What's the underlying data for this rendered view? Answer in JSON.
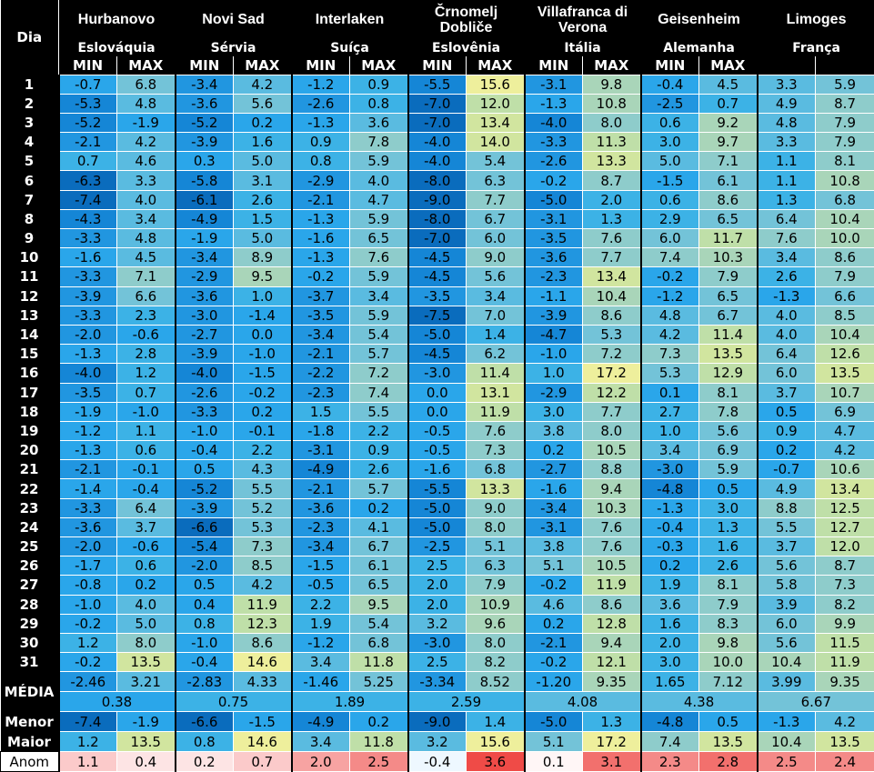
{
  "header": {
    "day_label": "Dia",
    "min_label": "MIN",
    "max_label": "MAX"
  },
  "stations": [
    {
      "city": "Hurbanovo",
      "country": "Eslováquia"
    },
    {
      "city": "Novi Sad",
      "country": "Sérvia"
    },
    {
      "city": "Interlaken",
      "country": "Suíça"
    },
    {
      "city": "Črnomelj Dobliče",
      "country": "Eslovênia"
    },
    {
      "city": "Villafranca di Verona",
      "country": "Itália"
    },
    {
      "city": "Geisenheim",
      "country": "Alemanha"
    },
    {
      "city": "Limoges",
      "country": "França"
    }
  ],
  "rows": [
    {
      "day": "1",
      "v": [
        "-0.7",
        "6.8",
        "-3.4",
        "4.2",
        "-1.2",
        "0.9",
        "-5.5",
        "15.6",
        "-3.1",
        "9.8",
        "-0.4",
        "4.5",
        "3.3",
        "5.9"
      ]
    },
    {
      "day": "2",
      "v": [
        "-5.3",
        "4.8",
        "-3.6",
        "5.6",
        "-2.6",
        "0.8",
        "-7.0",
        "12.0",
        "-1.3",
        "10.8",
        "-2.5",
        "0.7",
        "4.9",
        "8.7"
      ]
    },
    {
      "day": "3",
      "v": [
        "-5.2",
        "-1.9",
        "-5.2",
        "0.2",
        "-1.3",
        "3.6",
        "-7.0",
        "13.4",
        "-4.0",
        "8.0",
        "0.6",
        "9.2",
        "4.8",
        "7.9"
      ]
    },
    {
      "day": "4",
      "v": [
        "-2.1",
        "4.2",
        "-3.9",
        "1.6",
        "0.9",
        "7.8",
        "-4.0",
        "14.0",
        "-3.3",
        "11.3",
        "3.0",
        "9.7",
        "3.3",
        "7.9"
      ]
    },
    {
      "day": "5",
      "v": [
        "0.7",
        "4.6",
        "0.3",
        "5.0",
        "0.8",
        "5.9",
        "-4.0",
        "5.4",
        "-2.6",
        "13.3",
        "5.0",
        "7.1",
        "1.1",
        "8.1"
      ]
    },
    {
      "day": "6",
      "v": [
        "-6.3",
        "3.3",
        "-5.8",
        "3.1",
        "-2.9",
        "4.0",
        "-8.0",
        "6.3",
        "-0.2",
        "8.7",
        "-1.5",
        "6.1",
        "1.1",
        "10.8"
      ]
    },
    {
      "day": "7",
      "v": [
        "-7.4",
        "4.0",
        "-6.1",
        "2.6",
        "-2.1",
        "4.7",
        "-9.0",
        "7.7",
        "-5.0",
        "2.0",
        "0.6",
        "8.6",
        "1.3",
        "6.8"
      ]
    },
    {
      "day": "8",
      "v": [
        "-4.3",
        "3.4",
        "-4.9",
        "1.5",
        "-1.3",
        "5.9",
        "-8.0",
        "6.7",
        "-3.1",
        "1.3",
        "2.9",
        "6.5",
        "6.4",
        "10.4"
      ]
    },
    {
      "day": "9",
      "v": [
        "-3.3",
        "4.8",
        "-1.9",
        "5.0",
        "-1.6",
        "6.5",
        "-7.0",
        "6.0",
        "-3.5",
        "7.6",
        "6.0",
        "11.7",
        "7.6",
        "10.0"
      ]
    },
    {
      "day": "10",
      "v": [
        "-1.6",
        "4.5",
        "-3.4",
        "8.9",
        "-1.3",
        "7.6",
        "-4.5",
        "9.0",
        "-3.6",
        "7.7",
        "7.4",
        "10.3",
        "3.4",
        "8.6"
      ]
    },
    {
      "day": "11",
      "v": [
        "-3.3",
        "7.1",
        "-2.9",
        "9.5",
        "-0.2",
        "5.9",
        "-4.5",
        "5.6",
        "-2.3",
        "13.4",
        "-0.2",
        "7.9",
        "2.6",
        "7.9"
      ]
    },
    {
      "day": "12",
      "v": [
        "-3.9",
        "6.6",
        "-3.6",
        "1.0",
        "-3.7",
        "3.4",
        "-3.5",
        "3.4",
        "-1.1",
        "10.4",
        "-1.2",
        "6.5",
        "-1.3",
        "6.6"
      ]
    },
    {
      "day": "13",
      "v": [
        "-3.3",
        "2.3",
        "-3.0",
        "-1.4",
        "-3.5",
        "5.9",
        "-7.5",
        "7.0",
        "-3.9",
        "8.6",
        "4.8",
        "6.7",
        "4.0",
        "8.5"
      ]
    },
    {
      "day": "14",
      "v": [
        "-2.0",
        "-0.6",
        "-2.7",
        "0.0",
        "-3.4",
        "5.4",
        "-5.0",
        "1.4",
        "-4.7",
        "5.3",
        "4.2",
        "11.4",
        "4.0",
        "10.4"
      ]
    },
    {
      "day": "15",
      "v": [
        "-1.3",
        "2.8",
        "-3.9",
        "-1.0",
        "-2.1",
        "5.7",
        "-4.5",
        "6.2",
        "-1.0",
        "7.2",
        "7.3",
        "13.5",
        "6.4",
        "12.6"
      ]
    },
    {
      "day": "16",
      "v": [
        "-4.0",
        "1.2",
        "-4.0",
        "-1.5",
        "-2.2",
        "7.2",
        "-3.0",
        "11.4",
        "1.0",
        "17.2",
        "5.3",
        "12.9",
        "6.0",
        "13.5"
      ]
    },
    {
      "day": "17",
      "v": [
        "-3.5",
        "0.7",
        "-2.6",
        "-0.2",
        "-2.3",
        "7.4",
        "0.0",
        "13.1",
        "-2.9",
        "12.2",
        "0.1",
        "8.1",
        "3.7",
        "10.7"
      ]
    },
    {
      "day": "18",
      "v": [
        "-1.9",
        "-1.0",
        "-3.3",
        "0.2",
        "1.5",
        "5.5",
        "0.0",
        "11.9",
        "3.0",
        "7.7",
        "2.7",
        "7.8",
        "0.5",
        "6.9"
      ]
    },
    {
      "day": "19",
      "v": [
        "-1.2",
        "1.1",
        "-1.0",
        "-0.1",
        "-1.8",
        "2.2",
        "-0.5",
        "7.6",
        "3.8",
        "8.0",
        "1.0",
        "5.6",
        "0.9",
        "4.7"
      ]
    },
    {
      "day": "20",
      "v": [
        "-1.3",
        "0.6",
        "-0.4",
        "2.2",
        "-3.1",
        "0.9",
        "-0.5",
        "7.3",
        "0.2",
        "10.5",
        "3.4",
        "6.9",
        "0.2",
        "4.2"
      ]
    },
    {
      "day": "21",
      "v": [
        "-2.1",
        "-0.1",
        "0.5",
        "4.3",
        "-4.9",
        "2.6",
        "-1.6",
        "6.8",
        "-2.7",
        "8.8",
        "-3.0",
        "5.9",
        "-0.7",
        "10.6"
      ]
    },
    {
      "day": "22",
      "v": [
        "-1.4",
        "-0.4",
        "-5.2",
        "5.5",
        "-2.1",
        "5.7",
        "-5.5",
        "13.3",
        "-1.6",
        "9.4",
        "-4.8",
        "0.5",
        "4.9",
        "13.4"
      ]
    },
    {
      "day": "23",
      "v": [
        "-3.3",
        "6.4",
        "-3.9",
        "5.2",
        "-3.6",
        "0.2",
        "-5.0",
        "9.0",
        "-3.4",
        "10.3",
        "-1.3",
        "3.0",
        "8.8",
        "12.5"
      ]
    },
    {
      "day": "24",
      "v": [
        "-3.6",
        "3.7",
        "-6.6",
        "5.3",
        "-2.3",
        "4.1",
        "-5.0",
        "8.0",
        "-3.1",
        "7.6",
        "-0.4",
        "1.3",
        "5.5",
        "12.7"
      ]
    },
    {
      "day": "25",
      "v": [
        "-2.0",
        "-0.6",
        "-5.4",
        "7.3",
        "-3.4",
        "6.7",
        "-2.5",
        "5.1",
        "3.8",
        "7.6",
        "-0.3",
        "1.6",
        "3.7",
        "12.0"
      ]
    },
    {
      "day": "26",
      "v": [
        "-1.7",
        "0.6",
        "-2.0",
        "8.5",
        "-1.5",
        "6.1",
        "2.5",
        "6.3",
        "5.1",
        "10.5",
        "0.2",
        "2.6",
        "5.6",
        "8.7"
      ]
    },
    {
      "day": "27",
      "v": [
        "-0.8",
        "0.2",
        "0.5",
        "4.2",
        "-0.5",
        "6.5",
        "2.0",
        "7.9",
        "-0.2",
        "11.9",
        "1.9",
        "8.1",
        "5.8",
        "7.3"
      ]
    },
    {
      "day": "28",
      "v": [
        "-1.0",
        "4.0",
        "0.4",
        "11.9",
        "2.2",
        "9.5",
        "2.0",
        "10.9",
        "4.6",
        "8.6",
        "3.6",
        "7.9",
        "3.9",
        "8.2"
      ]
    },
    {
      "day": "29",
      "v": [
        "-0.2",
        "5.0",
        "0.8",
        "12.3",
        "1.9",
        "5.4",
        "3.2",
        "9.6",
        "0.2",
        "12.8",
        "1.6",
        "8.3",
        "6.0",
        "9.9"
      ]
    },
    {
      "day": "30",
      "v": [
        "1.2",
        "8.0",
        "-1.0",
        "8.6",
        "-1.2",
        "6.8",
        "-3.0",
        "8.0",
        "-2.1",
        "9.4",
        "2.0",
        "9.8",
        "5.6",
        "11.5"
      ]
    },
    {
      "day": "31",
      "v": [
        "-0.2",
        "13.5",
        "-0.4",
        "14.6",
        "3.4",
        "11.8",
        "2.5",
        "8.2",
        "-0.2",
        "12.1",
        "3.0",
        "10.0",
        "10.4",
        "11.9"
      ]
    }
  ],
  "footer": {
    "media_label": "MÉDIA",
    "media": [
      "-2.46",
      "3.21",
      "-2.83",
      "4.33",
      "-1.46",
      "5.25",
      "-3.34",
      "8.52",
      "-1.20",
      "9.35",
      "1.65",
      "7.12",
      "3.99",
      "9.35"
    ],
    "media_avg": [
      "0.38",
      "0.75",
      "1.89",
      "2.59",
      "4.08",
      "4.38",
      "6.67"
    ],
    "menor_label": "Menor",
    "menor": [
      "-7.4",
      "-1.9",
      "-6.6",
      "-1.5",
      "-4.9",
      "0.2",
      "-9.0",
      "1.4",
      "-5.0",
      "1.3",
      "-4.8",
      "0.5",
      "-1.3",
      "4.2"
    ],
    "maior_label": "Maior",
    "maior": [
      "1.2",
      "13.5",
      "0.8",
      "14.6",
      "3.4",
      "11.8",
      "3.2",
      "15.6",
      "5.1",
      "17.2",
      "7.4",
      "13.5",
      "10.4",
      "13.5"
    ],
    "anom_label": "Anom",
    "anom": [
      "1.1",
      "0.4",
      "0.2",
      "0.7",
      "2.0",
      "2.5",
      "-0.4",
      "3.6",
      "0.1",
      "3.1",
      "2.3",
      "2.8",
      "2.5",
      "2.4"
    ]
  },
  "colors": {
    "header_bg": "#000000",
    "header_text": "#ffffff",
    "cold": "#0d78c9",
    "cool": "#2ea6ea",
    "mild": "#6fc3de",
    "warm": "#bfe0a6",
    "hot": "#f3f29a",
    "anom_warm": "#f0514e",
    "anom_cool": "#eaf7ff"
  }
}
